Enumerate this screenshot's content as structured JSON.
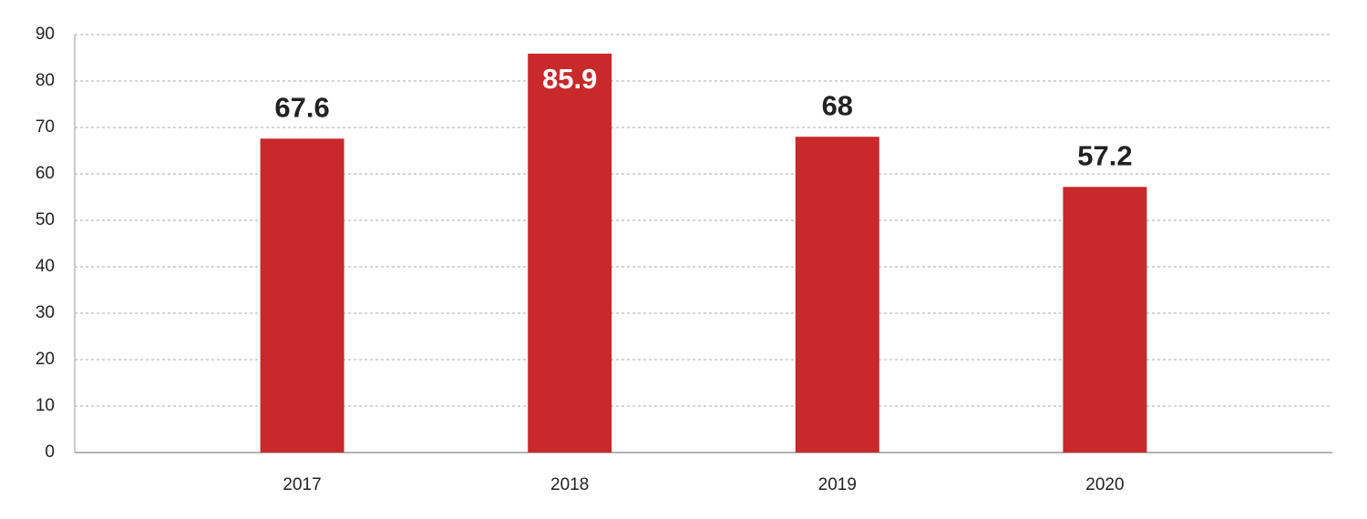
{
  "chart_data": {
    "type": "bar",
    "categories": [
      "2017",
      "2018",
      "2019",
      "2020"
    ],
    "values": [
      67.6,
      85.9,
      68,
      57.2
    ],
    "color": "#c8292b",
    "ylim": [
      0,
      90
    ],
    "yticks": [
      0,
      10,
      20,
      30,
      40,
      50,
      60,
      70,
      80,
      90
    ],
    "grid": true
  }
}
